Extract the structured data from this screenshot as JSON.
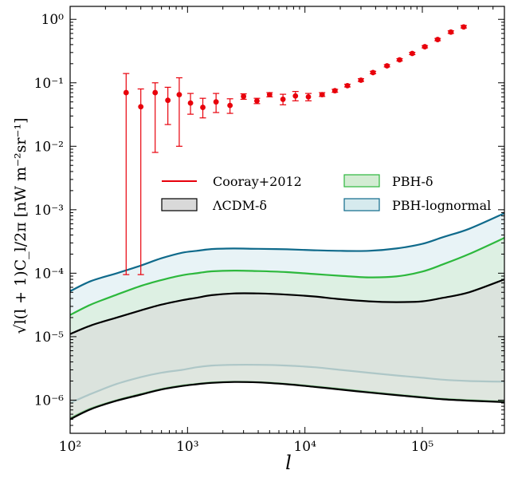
{
  "chart_data": {
    "type": "line",
    "title": "",
    "xlabel": "l",
    "ylabel": "√l(l + 1)C_l/2π [nW m⁻²sr⁻¹]",
    "xscale": "log",
    "yscale": "log",
    "xlim": [
      100,
      500000
    ],
    "ylim": [
      3e-07,
      1.6
    ],
    "x_tick_labels": [
      {
        "value": 100,
        "label": "10²"
      },
      {
        "value": 1000,
        "label": "10³"
      },
      {
        "value": 10000,
        "label": "10⁴"
      },
      {
        "value": 100000,
        "label": "10⁵"
      }
    ],
    "y_tick_labels": [
      {
        "value": 1e-06,
        "label": "10⁻⁶"
      },
      {
        "value": 1e-05,
        "label": "10⁻⁵"
      },
      {
        "value": 0.0001,
        "label": "10⁻⁴"
      },
      {
        "value": 0.001,
        "label": "10⁻³"
      },
      {
        "value": 0.01,
        "label": "10⁻²"
      },
      {
        "value": 0.1,
        "label": "10⁻¹"
      },
      {
        "value": 1,
        "label": "10⁰"
      }
    ],
    "legend": {
      "placement": "center-right",
      "entries": [
        {
          "label": "Cooray+2012",
          "kind": "line",
          "color": "#e8000b"
        },
        {
          "label": "PBH-δ",
          "kind": "patch",
          "edge": "#2ca02c",
          "fill": "#d3ecd3"
        },
        {
          "label": "ΛCDM-δ",
          "kind": "patch",
          "edge": "#000000",
          "fill": "#d9d9d9"
        },
        {
          "label": "PBH-lognormal",
          "kind": "patch",
          "edge": "#0f6a8b",
          "fill": "#d6eaee"
        }
      ]
    },
    "colors": {
      "data": "#e8000b",
      "lcdm": "#000000",
      "pbh_delta": "#2db83d",
      "pbh_lognormal": "#0f6a8b"
    },
    "data_points": [
      {
        "l": 300,
        "y": 0.07,
        "y_low": 9.5e-05,
        "y_high": 0.14
      },
      {
        "l": 400,
        "y": 0.042,
        "y_low": 9.5e-05,
        "y_high": 0.08
      },
      {
        "l": 530,
        "y": 0.07,
        "y_low": 0.008,
        "y_high": 0.1
      },
      {
        "l": 680,
        "y": 0.053,
        "y_low": 0.022,
        "y_high": 0.085
      },
      {
        "l": 850,
        "y": 0.065,
        "y_low": 0.01,
        "y_high": 0.12
      },
      {
        "l": 1060,
        "y": 0.048,
        "y_low": 0.032,
        "y_high": 0.068
      },
      {
        "l": 1350,
        "y": 0.041,
        "y_low": 0.028,
        "y_high": 0.057
      },
      {
        "l": 1750,
        "y": 0.05,
        "y_low": 0.034,
        "y_high": 0.068
      },
      {
        "l": 2300,
        "y": 0.044,
        "y_low": 0.033,
        "y_high": 0.056
      },
      {
        "l": 3000,
        "y": 0.061,
        "y_low": 0.055,
        "y_high": 0.067
      },
      {
        "l": 3900,
        "y": 0.052,
        "y_low": 0.047,
        "y_high": 0.057
      },
      {
        "l": 5000,
        "y": 0.065,
        "y_low": 0.06,
        "y_high": 0.07
      },
      {
        "l": 6500,
        "y": 0.055,
        "y_low": 0.045,
        "y_high": 0.066
      },
      {
        "l": 8300,
        "y": 0.062,
        "y_low": 0.052,
        "y_high": 0.073
      },
      {
        "l": 10700,
        "y": 0.06,
        "y_low": 0.052,
        "y_high": 0.068
      },
      {
        "l": 14000,
        "y": 0.065,
        "y_low": 0.061,
        "y_high": 0.07
      },
      {
        "l": 18000,
        "y": 0.075,
        "y_low": 0.071,
        "y_high": 0.079
      },
      {
        "l": 23000,
        "y": 0.09,
        "y_low": 0.086,
        "y_high": 0.095
      },
      {
        "l": 30000,
        "y": 0.11,
        "y_low": 0.105,
        "y_high": 0.116
      },
      {
        "l": 38000,
        "y": 0.145,
        "y_low": 0.139,
        "y_high": 0.152
      },
      {
        "l": 50000,
        "y": 0.185,
        "y_low": 0.178,
        "y_high": 0.193
      },
      {
        "l": 64000,
        "y": 0.23,
        "y_low": 0.221,
        "y_high": 0.24
      },
      {
        "l": 82000,
        "y": 0.29,
        "y_low": 0.278,
        "y_high": 0.302
      },
      {
        "l": 105000,
        "y": 0.37,
        "y_low": 0.355,
        "y_high": 0.385
      },
      {
        "l": 135000,
        "y": 0.48,
        "y_low": 0.46,
        "y_high": 0.5
      },
      {
        "l": 175000,
        "y": 0.63,
        "y_low": 0.6,
        "y_high": 0.66
      },
      {
        "l": 225000,
        "y": 0.76,
        "y_low": 0.73,
        "y_high": 0.8
      }
    ],
    "bands": [
      {
        "name": "PBH-lognormal",
        "color": "#0f6a8b",
        "fill": "#d6eaee",
        "l": [
          100,
          150,
          250,
          400,
          600,
          900,
          1200,
          1600,
          2500,
          4000,
          7000,
          12000,
          20000,
          35000,
          60000,
          100000,
          150000,
          250000,
          500000
        ],
        "upper": [
          5.2e-05,
          7.5e-05,
          0.0001,
          0.000132,
          0.000172,
          0.00021,
          0.000225,
          0.00024,
          0.000245,
          0.000242,
          0.000238,
          0.00023,
          0.000225,
          0.000225,
          0.000245,
          0.00029,
          0.00037,
          0.0005,
          0.00088
        ],
        "lower": [
          9e-07,
          1.25e-06,
          1.8e-06,
          2.3e-06,
          2.7e-06,
          3e-06,
          3.3e-06,
          3.5e-06,
          3.6e-06,
          3.6e-06,
          3.5e-06,
          3.3e-06,
          3e-06,
          2.7e-06,
          2.45e-06,
          2.25e-06,
          2.1e-06,
          2e-06,
          1.95e-06
        ]
      },
      {
        "name": "PBH-δ",
        "color": "#2db83d",
        "fill": "#d3ecd3",
        "l": [
          100,
          150,
          250,
          400,
          600,
          900,
          1200,
          1600,
          2500,
          4000,
          7000,
          12000,
          20000,
          35000,
          60000,
          100000,
          150000,
          250000,
          500000
        ],
        "upper": [
          2.2e-05,
          3.2e-05,
          4.6e-05,
          6.3e-05,
          7.8e-05,
          9.3e-05,
          0.0001,
          0.000107,
          0.00011,
          0.000108,
          0.000104,
          9.7e-05,
          9.1e-05,
          8.6e-05,
          8.9e-05,
          0.000106,
          0.000138,
          0.0002,
          0.00036
        ],
        "lower": [
          5.2e-07,
          7.4e-07,
          1e-06,
          1.25e-06,
          1.5e-06,
          1.7e-06,
          1.8e-06,
          1.9e-06,
          1.95e-06,
          1.92e-06,
          1.8e-06,
          1.65e-06,
          1.5e-06,
          1.35e-06,
          1.22e-06,
          1.12e-06,
          1.05e-06,
          1e-06,
          9.5e-07
        ]
      },
      {
        "name": "ΛCDM-δ",
        "color": "#000000",
        "fill": "#d9d9d9",
        "l": [
          100,
          150,
          250,
          400,
          600,
          900,
          1200,
          1600,
          2500,
          4000,
          7000,
          12000,
          20000,
          35000,
          60000,
          100000,
          150000,
          250000,
          500000
        ],
        "upper": [
          1.1e-05,
          1.5e-05,
          2e-05,
          2.6e-05,
          3.2e-05,
          3.75e-05,
          4.1e-05,
          4.5e-05,
          4.8e-05,
          4.8e-05,
          4.6e-05,
          4.3e-05,
          3.9e-05,
          3.6e-05,
          3.5e-05,
          3.6e-05,
          4.1e-05,
          5e-05,
          8e-05
        ],
        "lower": [
          5e-07,
          7.2e-07,
          9.8e-07,
          1.22e-06,
          1.47e-06,
          1.67e-06,
          1.78e-06,
          1.87e-06,
          1.93e-06,
          1.9e-06,
          1.78e-06,
          1.62e-06,
          1.47e-06,
          1.32e-06,
          1.2e-06,
          1.1e-06,
          1.03e-06,
          9.8e-07,
          9.3e-07
        ]
      }
    ]
  }
}
